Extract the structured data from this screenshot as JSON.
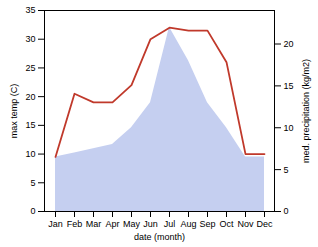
{
  "chart_data": {
    "type": "line",
    "categories": [
      "Jan",
      "Feb",
      "Mar",
      "Apr",
      "May",
      "Jun",
      "Jul",
      "Aug",
      "Sep",
      "Oct",
      "Nov",
      "Dec"
    ],
    "series": [
      {
        "type": "area",
        "axis": "y2",
        "color": "#c5cff0",
        "values": [
          6.5,
          7.0,
          7.5,
          8.0,
          10.0,
          13.0,
          22.0,
          18.0,
          13.0,
          10.0,
          6.5,
          6.5
        ]
      },
      {
        "type": "line",
        "color": "#c0392b",
        "values": [
          9.5,
          20.5,
          19.0,
          19.0,
          22.0,
          30.0,
          32.0,
          31.5,
          31.5,
          26.0,
          10.0,
          10.0
        ]
      }
    ],
    "xlabel": "date (month)",
    "ylabel": "max temp (C)",
    "y2label": "med. precipitation (kg/m2)",
    "ylim": [
      0,
      35
    ],
    "yticks": [
      0,
      5,
      10,
      15,
      20,
      25,
      30,
      35
    ],
    "y2lim": [
      0,
      24.0
    ],
    "y2ticks": [
      0,
      5,
      10,
      15,
      20
    ],
    "grid": false
  }
}
